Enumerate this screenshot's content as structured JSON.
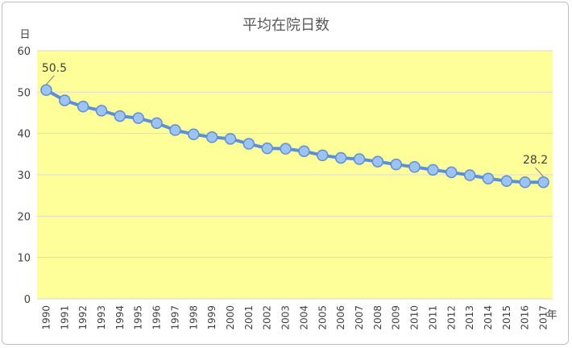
{
  "chart_data": {
    "type": "line",
    "title": "平均在院日数",
    "ylabel": "日",
    "xlabel": "年",
    "ylim": [
      0,
      60
    ],
    "yticks": [
      0,
      10,
      20,
      30,
      40,
      50,
      60
    ],
    "categories": [
      "1990",
      "1991",
      "1992",
      "1993",
      "1994",
      "1995",
      "1996",
      "1997",
      "1998",
      "1999",
      "2000",
      "2001",
      "2002",
      "2003",
      "2004",
      "2005",
      "2006",
      "2007",
      "2008",
      "2009",
      "2010",
      "2011",
      "2012",
      "2013",
      "2014",
      "2015",
      "2016",
      "2017"
    ],
    "series": [
      {
        "values": [
          50.5,
          48.0,
          46.5,
          45.5,
          44.2,
          43.7,
          42.5,
          40.8,
          39.8,
          39.1,
          38.7,
          37.5,
          36.4,
          36.3,
          35.7,
          34.7,
          34.1,
          33.8,
          33.2,
          32.5,
          31.9,
          31.2,
          30.6,
          29.9,
          29.1,
          28.5,
          28.2,
          28.2
        ]
      }
    ],
    "data_labels": [
      {
        "category": "1990",
        "text": "50.5"
      },
      {
        "category": "2017",
        "text": "28.2"
      }
    ],
    "grid": true,
    "colors": {
      "plot_background": "#ffff99",
      "line": "#5b8fd9",
      "marker_fill": "#9dc3f5",
      "gridline": "#d9d9d9"
    }
  }
}
